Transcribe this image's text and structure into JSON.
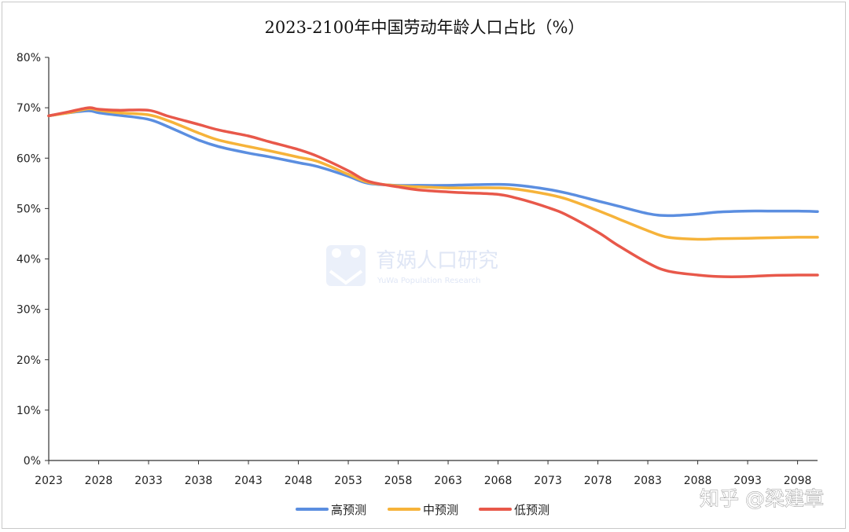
{
  "chart_data": {
    "type": "line",
    "title": "2023-2100年中国劳动年龄人口占比（%）",
    "xlabel": "",
    "ylabel": "",
    "x_range": [
      2023,
      2100
    ],
    "ylim": [
      0,
      80
    ],
    "y_ticks": [
      0,
      10,
      20,
      30,
      40,
      50,
      60,
      70,
      80
    ],
    "y_tick_labels": [
      "0%",
      "10%",
      "20%",
      "30%",
      "40%",
      "50%",
      "60%",
      "70%",
      "80%"
    ],
    "x_ticks": [
      2023,
      2028,
      2033,
      2038,
      2043,
      2048,
      2053,
      2058,
      2063,
      2068,
      2073,
      2078,
      2083,
      2088,
      2093,
      2098
    ],
    "x_tick_labels": [
      "2023",
      "2028",
      "2033",
      "2038",
      "2043",
      "2048",
      "2053",
      "2058",
      "2063",
      "2068",
      "2073",
      "2078",
      "2083",
      "2088",
      "2093",
      "2098"
    ],
    "grid": false,
    "legend_position": "bottom-center",
    "series": [
      {
        "name": "高预测",
        "color": "#5b8ee0",
        "x": [
          2023,
          2025,
          2027,
          2028,
          2030,
          2033,
          2035,
          2038,
          2040,
          2043,
          2045,
          2048,
          2050,
          2053,
          2055,
          2058,
          2060,
          2063,
          2065,
          2068,
          2070,
          2073,
          2075,
          2078,
          2080,
          2083,
          2085,
          2088,
          2090,
          2093,
          2095,
          2098,
          2100
        ],
        "values": [
          68.4,
          69.0,
          69.4,
          69.0,
          68.5,
          67.7,
          66.2,
          63.6,
          62.3,
          61.0,
          60.3,
          59.1,
          58.3,
          56.4,
          55.0,
          54.6,
          54.6,
          54.6,
          54.7,
          54.8,
          54.6,
          53.8,
          53.0,
          51.5,
          50.5,
          49.0,
          48.6,
          48.9,
          49.3,
          49.5,
          49.5,
          49.5,
          49.4
        ]
      },
      {
        "name": "中预测",
        "color": "#f6b33a",
        "x": [
          2023,
          2025,
          2027,
          2028,
          2030,
          2033,
          2035,
          2038,
          2040,
          2043,
          2045,
          2048,
          2050,
          2053,
          2055,
          2058,
          2060,
          2063,
          2065,
          2068,
          2070,
          2073,
          2075,
          2078,
          2080,
          2083,
          2085,
          2088,
          2090,
          2093,
          2095,
          2098,
          2100
        ],
        "values": [
          68.4,
          69.0,
          69.8,
          69.5,
          69.0,
          68.6,
          67.4,
          65.0,
          63.6,
          62.3,
          61.5,
          60.2,
          59.3,
          56.8,
          55.2,
          54.5,
          54.3,
          54.1,
          54.1,
          54.1,
          53.8,
          52.8,
          51.8,
          49.6,
          48.0,
          45.6,
          44.3,
          43.9,
          44.0,
          44.1,
          44.2,
          44.3,
          44.3
        ]
      },
      {
        "name": "低预测",
        "color": "#e8584a",
        "x": [
          2023,
          2025,
          2027,
          2028,
          2030,
          2033,
          2035,
          2038,
          2040,
          2043,
          2045,
          2048,
          2050,
          2053,
          2055,
          2058,
          2060,
          2063,
          2065,
          2068,
          2070,
          2073,
          2075,
          2078,
          2080,
          2083,
          2085,
          2088,
          2090,
          2093,
          2095,
          2098,
          2100
        ],
        "values": [
          68.4,
          69.2,
          70.0,
          69.7,
          69.5,
          69.5,
          68.3,
          66.7,
          65.6,
          64.4,
          63.3,
          61.7,
          60.3,
          57.5,
          55.4,
          54.3,
          53.7,
          53.3,
          53.1,
          52.8,
          52.0,
          50.2,
          48.6,
          45.3,
          42.7,
          39.2,
          37.6,
          36.8,
          36.5,
          36.5,
          36.7,
          36.8,
          36.8
        ]
      }
    ]
  },
  "watermarks": {
    "center_text": "育娲人口研究",
    "center_subtext": "YuWa Population Research",
    "corner_text": "知乎 @梁建章"
  }
}
